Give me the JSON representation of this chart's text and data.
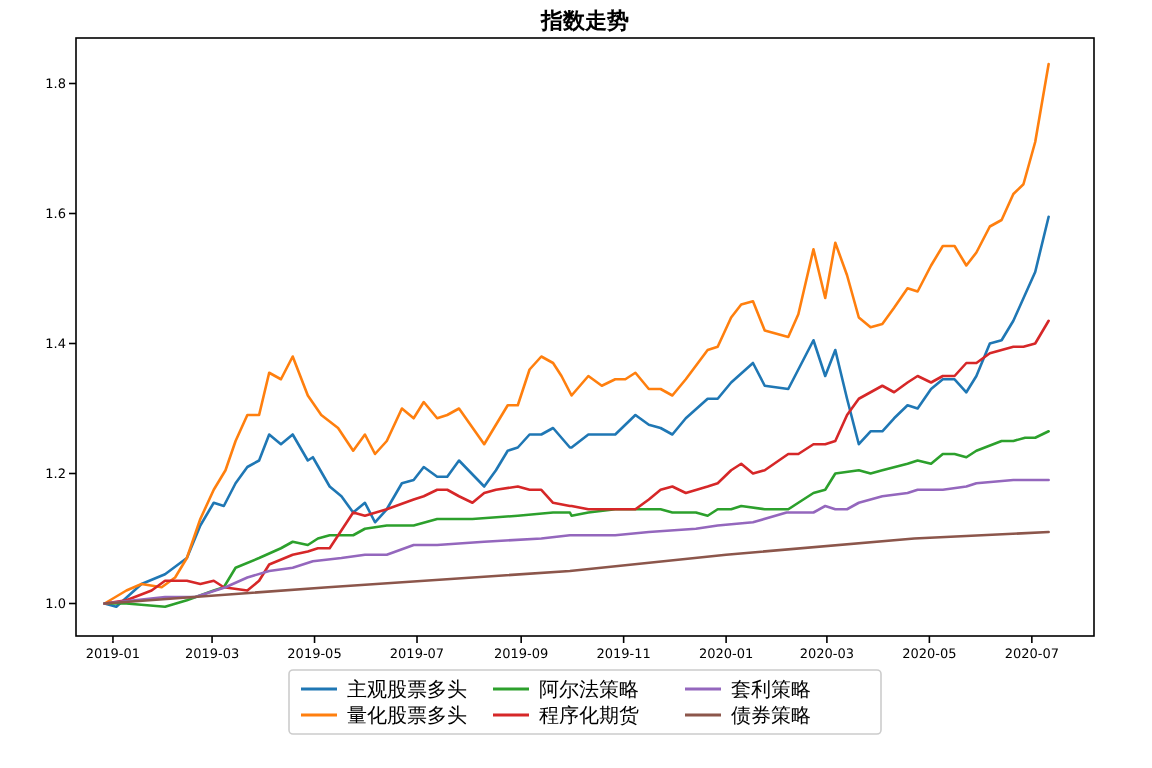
{
  "chart_data": {
    "type": "line",
    "title": "指数走势",
    "xlim": [
      "2018-12-10",
      "2020-08-07"
    ],
    "ylim": [
      0.95,
      1.87
    ],
    "xticks": [
      "2019-01",
      "2019-03",
      "2019-05",
      "2019-07",
      "2019-09",
      "2019-11",
      "2020-01",
      "2020-03",
      "2020-05",
      "2020-07"
    ],
    "yticks": [
      {
        "value": 1,
        "label": "1.0"
      },
      {
        "value": 1.2,
        "label": "1.2"
      },
      {
        "value": 1.4,
        "label": "1.4"
      },
      {
        "value": 1.6,
        "label": "1.6"
      },
      {
        "value": 1.8,
        "label": "1.8"
      }
    ],
    "legend": "bottom",
    "series": [
      {
        "name": "主观股票多头",
        "color": "#1f77b4",
        "x": [
          "2018-12-27",
          "2019-01-03",
          "2019-01-18",
          "2019-02-01",
          "2019-02-14",
          "2019-02-22",
          "2019-03-02",
          "2019-03-08",
          "2019-03-15",
          "2019-03-22",
          "2019-03-29",
          "2019-04-04",
          "2019-04-11",
          "2019-04-18",
          "2019-04-27",
          "2019-04-30",
          "2019-05-10",
          "2019-05-17",
          "2019-05-24",
          "2019-05-31",
          "2019-06-06",
          "2019-06-13",
          "2019-06-22",
          "2019-06-29",
          "2019-07-05",
          "2019-07-13",
          "2019-07-19",
          "2019-07-26",
          "2019-08-10",
          "2019-08-17",
          "2019-08-24",
          "2019-08-30",
          "2019-09-06",
          "2019-09-13",
          "2019-09-20",
          "2019-09-30",
          "2019-10-01",
          "2019-10-11",
          "2019-10-27",
          "2019-11-08",
          "2019-11-16",
          "2019-11-23",
          "2019-11-30",
          "2019-12-08",
          "2019-12-21",
          "2019-12-27",
          "2020-01-04",
          "2020-01-17",
          "2020-01-24",
          "2020-02-07",
          "2020-02-13",
          "2020-02-22",
          "2020-02-29",
          "2020-03-06",
          "2020-03-13",
          "2020-03-20",
          "2020-03-27",
          "2020-04-03",
          "2020-04-10",
          "2020-04-18",
          "2020-04-24",
          "2020-05-02",
          "2020-05-09",
          "2020-05-16",
          "2020-05-23",
          "2020-05-29",
          "2020-06-06",
          "2020-06-13",
          "2020-06-20",
          "2020-07-03",
          "2020-07-11"
        ],
        "values": [
          1.0,
          0.995,
          1.03,
          1.045,
          1.07,
          1.12,
          1.155,
          1.15,
          1.185,
          1.21,
          1.22,
          1.26,
          1.245,
          1.26,
          1.22,
          1.225,
          1.18,
          1.165,
          1.14,
          1.155,
          1.125,
          1.145,
          1.185,
          1.19,
          1.21,
          1.195,
          1.195,
          1.22,
          1.18,
          1.205,
          1.235,
          1.24,
          1.26,
          1.26,
          1.27,
          1.24,
          1.24,
          1.26,
          1.26,
          1.29,
          1.275,
          1.27,
          1.26,
          1.285,
          1.315,
          1.315,
          1.34,
          1.37,
          1.335,
          1.33,
          1.36,
          1.405,
          1.35,
          1.39,
          1.315,
          1.245,
          1.265,
          1.265,
          1.285,
          1.305,
          1.3,
          1.33,
          1.345,
          1.345,
          1.325,
          1.35,
          1.4,
          1.405,
          1.435,
          1.51,
          1.595
        ]
      },
      {
        "name": "量化股票多头",
        "color": "#ff7f0e",
        "x": [
          "2018-12-27",
          "2019-01-09",
          "2019-01-18",
          "2019-01-30",
          "2019-02-07",
          "2019-02-14",
          "2019-02-22",
          "2019-03-02",
          "2019-03-09",
          "2019-03-15",
          "2019-03-22",
          "2019-03-29",
          "2019-04-04",
          "2019-04-11",
          "2019-04-18",
          "2019-04-27",
          "2019-05-05",
          "2019-05-15",
          "2019-05-24",
          "2019-05-31",
          "2019-06-06",
          "2019-06-13",
          "2019-06-22",
          "2019-06-29",
          "2019-07-05",
          "2019-07-13",
          "2019-07-19",
          "2019-07-26",
          "2019-08-10",
          "2019-08-17",
          "2019-08-24",
          "2019-08-30",
          "2019-09-06",
          "2019-09-13",
          "2019-09-20",
          "2019-09-25",
          "2019-10-01",
          "2019-10-11",
          "2019-10-19",
          "2019-10-27",
          "2019-11-02",
          "2019-11-08",
          "2019-11-16",
          "2019-11-23",
          "2019-11-30",
          "2019-12-08",
          "2019-12-21",
          "2019-12-27",
          "2020-01-04",
          "2020-01-10",
          "2020-01-17",
          "2020-01-24",
          "2020-02-07",
          "2020-02-13",
          "2020-02-22",
          "2020-02-29",
          "2020-03-06",
          "2020-03-13",
          "2020-03-20",
          "2020-03-27",
          "2020-04-03",
          "2020-04-10",
          "2020-04-18",
          "2020-04-24",
          "2020-05-02",
          "2020-05-09",
          "2020-05-16",
          "2020-05-23",
          "2020-05-29",
          "2020-06-06",
          "2020-06-13",
          "2020-06-20",
          "2020-06-26",
          "2020-07-03",
          "2020-07-11"
        ],
        "values": [
          1.0,
          1.02,
          1.03,
          1.025,
          1.04,
          1.07,
          1.13,
          1.175,
          1.205,
          1.25,
          1.29,
          1.29,
          1.355,
          1.345,
          1.38,
          1.32,
          1.29,
          1.27,
          1.235,
          1.26,
          1.23,
          1.25,
          1.3,
          1.285,
          1.31,
          1.285,
          1.29,
          1.3,
          1.245,
          1.275,
          1.305,
          1.305,
          1.36,
          1.38,
          1.37,
          1.35,
          1.32,
          1.35,
          1.335,
          1.345,
          1.345,
          1.355,
          1.33,
          1.33,
          1.32,
          1.345,
          1.39,
          1.395,
          1.44,
          1.46,
          1.465,
          1.42,
          1.41,
          1.445,
          1.545,
          1.47,
          1.555,
          1.505,
          1.44,
          1.425,
          1.43,
          1.455,
          1.485,
          1.48,
          1.52,
          1.55,
          1.55,
          1.52,
          1.54,
          1.58,
          1.59,
          1.63,
          1.645,
          1.71,
          1.83
        ]
      },
      {
        "name": "阿尔法策略",
        "color": "#2ca02c",
        "x": [
          "2018-12-27",
          "2019-01-09",
          "2019-02-01",
          "2019-02-14",
          "2019-03-02",
          "2019-03-08",
          "2019-03-15",
          "2019-03-29",
          "2019-04-11",
          "2019-04-18",
          "2019-04-27",
          "2019-05-03",
          "2019-05-10",
          "2019-05-24",
          "2019-05-31",
          "2019-06-13",
          "2019-06-29",
          "2019-07-13",
          "2019-07-19",
          "2019-07-26",
          "2019-08-03",
          "2019-08-30",
          "2019-09-20",
          "2019-09-30",
          "2019-10-01",
          "2019-10-11",
          "2019-10-27",
          "2019-11-23",
          "2019-11-30",
          "2019-12-14",
          "2019-12-21",
          "2019-12-27",
          "2020-01-04",
          "2020-01-10",
          "2020-01-24",
          "2020-02-07",
          "2020-02-13",
          "2020-02-22",
          "2020-02-29",
          "2020-03-06",
          "2020-03-20",
          "2020-03-27",
          "2020-04-03",
          "2020-04-18",
          "2020-04-24",
          "2020-05-02",
          "2020-05-09",
          "2020-05-16",
          "2020-05-23",
          "2020-05-29",
          "2020-06-13",
          "2020-06-20",
          "2020-06-27",
          "2020-07-03",
          "2020-07-11"
        ],
        "values": [
          1.0,
          1.0,
          0.995,
          1.005,
          1.02,
          1.025,
          1.055,
          1.07,
          1.085,
          1.095,
          1.09,
          1.1,
          1.105,
          1.105,
          1.115,
          1.12,
          1.12,
          1.13,
          1.13,
          1.13,
          1.13,
          1.135,
          1.14,
          1.14,
          1.135,
          1.14,
          1.145,
          1.145,
          1.14,
          1.14,
          1.135,
          1.145,
          1.145,
          1.15,
          1.145,
          1.145,
          1.155,
          1.17,
          1.175,
          1.2,
          1.205,
          1.2,
          1.205,
          1.215,
          1.22,
          1.215,
          1.23,
          1.23,
          1.225,
          1.235,
          1.25,
          1.25,
          1.255,
          1.255,
          1.265
        ]
      },
      {
        "name": "程序化期货",
        "color": "#d62728",
        "x": [
          "2018-12-27",
          "2019-01-09",
          "2019-01-24",
          "2019-02-01",
          "2019-02-14",
          "2019-02-22",
          "2019-03-02",
          "2019-03-08",
          "2019-03-22",
          "2019-03-29",
          "2019-04-04",
          "2019-04-18",
          "2019-04-27",
          "2019-05-03",
          "2019-05-10",
          "2019-05-24",
          "2019-05-31",
          "2019-06-13",
          "2019-06-29",
          "2019-07-05",
          "2019-07-13",
          "2019-07-19",
          "2019-07-26",
          "2019-08-03",
          "2019-08-10",
          "2019-08-17",
          "2019-08-30",
          "2019-09-06",
          "2019-09-13",
          "2019-09-20",
          "2019-09-30",
          "2019-10-01",
          "2019-10-11",
          "2019-10-27",
          "2019-11-08",
          "2019-11-16",
          "2019-11-23",
          "2019-11-30",
          "2019-12-08",
          "2019-12-21",
          "2019-12-27",
          "2020-01-04",
          "2020-01-10",
          "2020-01-17",
          "2020-01-24",
          "2020-02-07",
          "2020-02-13",
          "2020-02-22",
          "2020-02-29",
          "2020-03-06",
          "2020-03-13",
          "2020-03-20",
          "2020-03-27",
          "2020-04-03",
          "2020-04-10",
          "2020-04-18",
          "2020-04-24",
          "2020-05-02",
          "2020-05-09",
          "2020-05-16",
          "2020-05-23",
          "2020-05-29",
          "2020-06-06",
          "2020-06-13",
          "2020-06-20",
          "2020-06-26",
          "2020-07-03",
          "2020-07-11"
        ],
        "values": [
          1.0,
          1.005,
          1.02,
          1.035,
          1.035,
          1.03,
          1.035,
          1.025,
          1.02,
          1.035,
          1.06,
          1.075,
          1.08,
          1.085,
          1.085,
          1.14,
          1.135,
          1.145,
          1.16,
          1.165,
          1.175,
          1.175,
          1.165,
          1.155,
          1.17,
          1.175,
          1.18,
          1.175,
          1.175,
          1.155,
          1.15,
          1.15,
          1.145,
          1.145,
          1.145,
          1.16,
          1.175,
          1.18,
          1.17,
          1.18,
          1.185,
          1.205,
          1.215,
          1.2,
          1.205,
          1.23,
          1.23,
          1.245,
          1.245,
          1.25,
          1.29,
          1.315,
          1.325,
          1.335,
          1.325,
          1.34,
          1.35,
          1.34,
          1.35,
          1.35,
          1.37,
          1.37,
          1.385,
          1.39,
          1.395,
          1.395,
          1.4,
          1.435
        ]
      },
      {
        "name": "套利策略",
        "color": "#9467bd",
        "x": [
          "2018-12-27",
          "2019-02-01",
          "2019-02-19",
          "2019-03-09",
          "2019-03-22",
          "2019-04-04",
          "2019-04-18",
          "2019-04-30",
          "2019-05-17",
          "2019-05-31",
          "2019-06-13",
          "2019-06-29",
          "2019-07-13",
          "2019-08-10",
          "2019-09-13",
          "2019-09-30",
          "2019-10-11",
          "2019-10-27",
          "2019-11-16",
          "2019-12-14",
          "2019-12-27",
          "2020-01-17",
          "2020-02-06",
          "2020-02-22",
          "2020-02-29",
          "2020-03-06",
          "2020-03-13",
          "2020-03-20",
          "2020-04-03",
          "2020-04-18",
          "2020-04-24",
          "2020-05-09",
          "2020-05-23",
          "2020-05-29",
          "2020-06-20",
          "2020-07-03",
          "2020-07-11"
        ],
        "values": [
          1.0,
          1.01,
          1.01,
          1.025,
          1.04,
          1.05,
          1.055,
          1.065,
          1.07,
          1.075,
          1.075,
          1.09,
          1.09,
          1.095,
          1.1,
          1.105,
          1.105,
          1.105,
          1.11,
          1.115,
          1.12,
          1.125,
          1.14,
          1.14,
          1.15,
          1.145,
          1.145,
          1.155,
          1.165,
          1.17,
          1.175,
          1.175,
          1.18,
          1.185,
          1.19,
          1.19,
          1.19
        ]
      },
      {
        "name": "债券策略",
        "color": "#8c564b",
        "x": [
          "2018-12-27",
          "2019-05-09",
          "2019-09-30",
          "2020-01-01",
          "2020-04-22",
          "2020-07-11"
        ],
        "values": [
          1.0,
          1.025,
          1.05,
          1.075,
          1.1,
          1.11
        ]
      }
    ]
  }
}
